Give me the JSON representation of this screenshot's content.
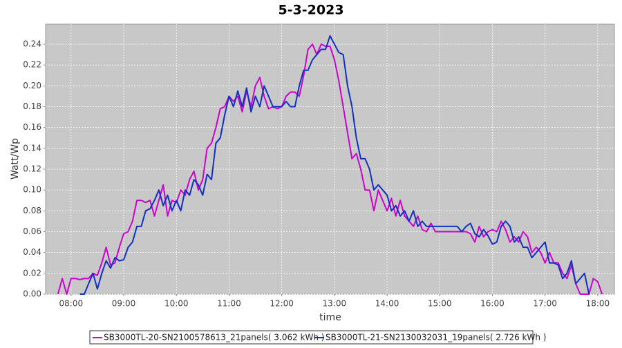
{
  "chart_data": {
    "type": "line",
    "title": "5-3-2023",
    "x_label": "time",
    "y_label": "Watt/Wp",
    "x": [
      "07:45",
      "07:50",
      "07:55",
      "08:00",
      "08:05",
      "08:10",
      "08:15",
      "08:20",
      "08:25",
      "08:30",
      "08:35",
      "08:40",
      "08:45",
      "08:50",
      "08:55",
      "09:00",
      "09:05",
      "09:10",
      "09:15",
      "09:20",
      "09:25",
      "09:30",
      "09:35",
      "09:40",
      "09:45",
      "09:50",
      "09:55",
      "10:00",
      "10:05",
      "10:10",
      "10:15",
      "10:20",
      "10:25",
      "10:30",
      "10:35",
      "10:40",
      "10:45",
      "10:50",
      "10:55",
      "11:00",
      "11:05",
      "11:10",
      "11:15",
      "11:20",
      "11:25",
      "11:30",
      "11:35",
      "11:40",
      "11:45",
      "11:50",
      "11:55",
      "12:00",
      "12:05",
      "12:10",
      "12:15",
      "12:20",
      "12:25",
      "12:30",
      "12:35",
      "12:40",
      "12:45",
      "12:50",
      "12:55",
      "13:00",
      "13:05",
      "13:10",
      "13:15",
      "13:20",
      "13:25",
      "13:30",
      "13:35",
      "13:40",
      "13:45",
      "13:50",
      "13:55",
      "14:00",
      "14:05",
      "14:10",
      "14:15",
      "14:20",
      "14:25",
      "14:30",
      "14:35",
      "14:40",
      "14:45",
      "14:50",
      "14:55",
      "15:00",
      "15:05",
      "15:10",
      "15:15",
      "15:20",
      "15:25",
      "15:30",
      "15:35",
      "15:40",
      "15:45",
      "15:50",
      "15:55",
      "16:00",
      "16:05",
      "16:10",
      "16:15",
      "16:20",
      "16:25",
      "16:30",
      "16:35",
      "16:40",
      "16:45",
      "16:50",
      "16:55",
      "17:00",
      "17:05",
      "17:10",
      "17:15",
      "17:20",
      "17:25",
      "17:30",
      "17:35",
      "17:40",
      "17:45",
      "17:50",
      "17:55",
      "18:00",
      "18:05"
    ],
    "series": [
      {
        "name": "SB3000TL-20-SN2100578613_21panels( 3.062 kWh )",
        "color": "#cc00cc",
        "values": [
          0,
          0.015,
          0,
          0.015,
          0.015,
          0.014,
          0.015,
          0.015,
          0.02,
          0.018,
          0.03,
          0.045,
          0.028,
          0.03,
          0.045,
          0.058,
          0.06,
          0.07,
          0.09,
          0.09,
          0.088,
          0.09,
          0.075,
          0.09,
          0.105,
          0.075,
          0.09,
          0.088,
          0.1,
          0.095,
          0.11,
          0.118,
          0.1,
          0.11,
          0.14,
          0.145,
          0.16,
          0.178,
          0.18,
          0.19,
          0.185,
          0.19,
          0.175,
          0.195,
          0.18,
          0.2,
          0.208,
          0.19,
          0.178,
          0.18,
          0.178,
          0.18,
          0.19,
          0.194,
          0.194,
          0.19,
          0.21,
          0.235,
          0.24,
          0.23,
          0.24,
          0.238,
          0.238,
          0.225,
          0.205,
          0.18,
          0.155,
          0.13,
          0.135,
          0.12,
          0.1,
          0.1,
          0.08,
          0.1,
          0.09,
          0.08,
          0.092,
          0.075,
          0.09,
          0.075,
          0.07,
          0.065,
          0.075,
          0.062,
          0.06,
          0.068,
          0.06,
          0.06,
          0.06,
          0.06,
          0.06,
          0.06,
          0.06,
          0.06,
          0.058,
          0.05,
          0.065,
          0.055,
          0.06,
          0.062,
          0.06,
          0.07,
          0.062,
          0.05,
          0.055,
          0.05,
          0.06,
          0.055,
          0.04,
          0.045,
          0.04,
          0.03,
          0.04,
          0.03,
          0.03,
          0.02,
          0.015,
          0.028,
          0.01,
          0,
          0,
          0,
          0.015,
          0.012,
          0
        ]
      },
      {
        "name": "SB3000TL-21-SN2130032031_19panels( 2.726 kWh )",
        "color": "#1030c0",
        "values": [
          null,
          null,
          null,
          null,
          null,
          0,
          0,
          0.01,
          0.02,
          0.005,
          0.02,
          0.032,
          0.025,
          0.035,
          0.032,
          0.033,
          0.045,
          0.05,
          0.065,
          0.065,
          0.08,
          0.082,
          0.09,
          0.1,
          0.085,
          0.095,
          0.08,
          0.09,
          0.08,
          0.1,
          0.095,
          0.11,
          0.105,
          0.095,
          0.115,
          0.11,
          0.145,
          0.15,
          0.172,
          0.19,
          0.18,
          0.195,
          0.18,
          0.198,
          0.175,
          0.19,
          0.18,
          0.2,
          0.19,
          0.18,
          0.18,
          0.18,
          0.185,
          0.18,
          0.18,
          0.2,
          0.215,
          0.215,
          0.225,
          0.23,
          0.235,
          0.235,
          0.248,
          0.24,
          0.232,
          0.23,
          0.2,
          0.18,
          0.15,
          0.13,
          0.13,
          0.12,
          0.1,
          0.105,
          0.1,
          0.095,
          0.08,
          0.085,
          0.075,
          0.08,
          0.07,
          0.08,
          0.065,
          0.07,
          0.065,
          0.065,
          0.065,
          0.065,
          0.065,
          0.065,
          0.065,
          0.065,
          0.06,
          0.065,
          0.068,
          0.058,
          0.055,
          0.062,
          0.056,
          0.048,
          0.05,
          0.065,
          0.07,
          0.065,
          0.05,
          0.055,
          0.045,
          0.045,
          0.035,
          0.04,
          0.045,
          0.05,
          0.03,
          0.03,
          0.028,
          0.015,
          0.02,
          0.032,
          0.01,
          0.015,
          0.02,
          0,
          null,
          null,
          null
        ]
      }
    ],
    "xlim": [
      "07:31",
      "18:19"
    ],
    "xticks": [
      "08:00",
      "09:00",
      "10:00",
      "11:00",
      "12:00",
      "13:00",
      "14:00",
      "15:00",
      "16:00",
      "17:00",
      "18:00"
    ],
    "ylim": [
      0,
      0.2592
    ],
    "yticks": [
      {
        "value": 0,
        "label": "0.00"
      },
      {
        "value": 0.02,
        "label": "0.02"
      },
      {
        "value": 0.04,
        "label": "0.04"
      },
      {
        "value": 0.06,
        "label": "0.06"
      },
      {
        "value": 0.08,
        "label": "0.08"
      },
      {
        "value": 0.1,
        "label": "0.10"
      },
      {
        "value": 0.12,
        "label": "0.12"
      },
      {
        "value": 0.14,
        "label": "0.14"
      },
      {
        "value": 0.16,
        "label": "0.16"
      },
      {
        "value": 0.18,
        "label": "0.18"
      },
      {
        "value": 0.2,
        "label": "0.20"
      },
      {
        "value": 0.22,
        "label": "0.22"
      },
      {
        "value": 0.24,
        "label": "0.24"
      }
    ],
    "grid": true
  }
}
